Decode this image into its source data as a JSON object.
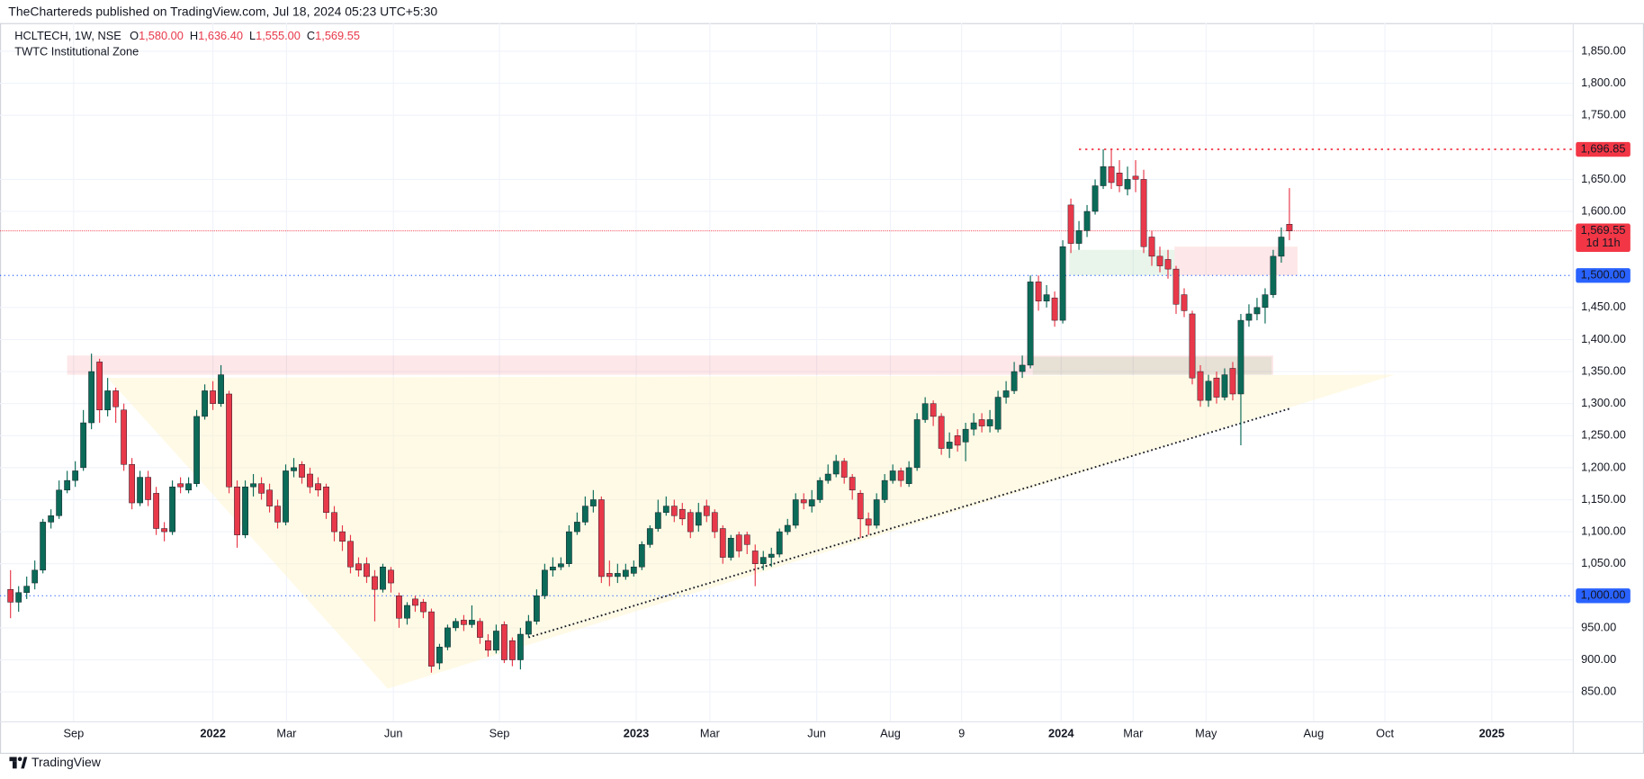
{
  "chart_data": {
    "type": "candlestick",
    "publisher": "TheChartereds published on TradingView.com, Jul 18, 2024 05:23 UTC+5:30",
    "symbol": "HCLTECH, 1W, NSE",
    "ohlc_legend": [
      {
        "key": "O",
        "value": "1,580.00"
      },
      {
        "key": "H",
        "value": "1,636.40"
      },
      {
        "key": "L",
        "value": "1,555.00"
      },
      {
        "key": "C",
        "value": "1,569.55"
      }
    ],
    "indicator": "TWTC Institutional Zone",
    "brand": "TradingView",
    "up_color": "#0b6b58",
    "down_color": "#e8394a",
    "xlim": [
      -1.3,
      193
    ],
    "ylim": [
      804,
      1894
    ],
    "xticks": [
      {
        "value": 7.8,
        "label": "Sep"
      },
      {
        "value": 25.0,
        "label": "2022"
      },
      {
        "value": 34.1,
        "label": "Mar"
      },
      {
        "value": 47.3,
        "label": "Jun"
      },
      {
        "value": 60.4,
        "label": "Sep"
      },
      {
        "value": 77.3,
        "label": "2023"
      },
      {
        "value": 86.4,
        "label": "Mar"
      },
      {
        "value": 99.6,
        "label": "Jun"
      },
      {
        "value": 108.7,
        "label": "Aug"
      },
      {
        "value": 117.5,
        "label": "9"
      },
      {
        "value": 129.8,
        "label": "2024"
      },
      {
        "value": 138.7,
        "label": "Mar"
      },
      {
        "value": 147.7,
        "label": "May"
      },
      {
        "value": 161.0,
        "label": "Aug"
      },
      {
        "value": 169.8,
        "label": "Oct"
      },
      {
        "value": 183.0,
        "label": "2025"
      }
    ],
    "yticks": [
      {
        "value": 1850,
        "label": "1,850.00"
      },
      {
        "value": 1800,
        "label": "1,800.00"
      },
      {
        "value": 1750,
        "label": "1,750.00"
      },
      {
        "value": 1650,
        "label": "1,650.00"
      },
      {
        "value": 1600,
        "label": "1,600.00"
      },
      {
        "value": 1450,
        "label": "1,450.00"
      },
      {
        "value": 1400,
        "label": "1,400.00"
      },
      {
        "value": 1350,
        "label": "1,350.00"
      },
      {
        "value": 1300,
        "label": "1,300.00"
      },
      {
        "value": 1250,
        "label": "1,250.00"
      },
      {
        "value": 1200,
        "label": "1,200.00"
      },
      {
        "value": 1150,
        "label": "1,150.00"
      },
      {
        "value": 1100,
        "label": "1,100.00"
      },
      {
        "value": 1050,
        "label": "1,050.00"
      },
      {
        "value": 950,
        "label": "950.00"
      },
      {
        "value": 900,
        "label": "900.00"
      },
      {
        "value": 850,
        "label": "850.00"
      }
    ],
    "grid": true,
    "levels": [
      {
        "value": 1696.85,
        "label": "1,696.85",
        "color": "#f23645",
        "dash": "2 4",
        "from": 132
      },
      {
        "value": 1500,
        "label": "1,500.00",
        "color": "#2962ff",
        "dash": "1 3"
      },
      {
        "value": 1000,
        "label": "1,000.00",
        "color": "#2962ff",
        "dash": "1 3"
      }
    ],
    "last_price": {
      "value": 1569.55,
      "label": "1,569.55",
      "countdown": "1d 11h",
      "color": "#f23645"
    },
    "trendline": {
      "x": [
        64,
        158
      ],
      "y": [
        935,
        1292
      ],
      "color": "#131722"
    },
    "triangle": {
      "x": [
        12,
        46.6,
        171
      ],
      "y": [
        1340,
        855,
        1345
      ],
      "color": "rgba(255,245,200,0.45)"
    },
    "zones": [
      {
        "x": [
          7,
          156
        ],
        "y": [
          1345,
          1375
        ],
        "color": "rgba(242,54,69,0.12)"
      },
      {
        "x": [
          126.3,
          155.8
        ],
        "y": [
          1345,
          1373
        ],
        "color": "rgba(76,175,80,0.12)"
      },
      {
        "x": [
          130.8,
          143.8
        ],
        "y": [
          1500,
          1540
        ],
        "color": "rgba(76,175,80,0.12)"
      },
      {
        "x": [
          143.8,
          159
        ],
        "y": [
          1500,
          1545
        ],
        "color": "rgba(242,54,69,0.12)"
      }
    ],
    "open": [
      1010,
      990,
      1005,
      1020,
      1040,
      1115,
      1125,
      1165,
      1180,
      1200,
      1270,
      1365,
      1290,
      1320,
      1290,
      1205,
      1145,
      1185,
      1160,
      1105,
      1100,
      1175,
      1165,
      1175,
      1280,
      1320,
      1300,
      1315,
      1170,
      1095,
      1170,
      1175,
      1165,
      1140,
      1115,
      1195,
      1205,
      1190,
      1175,
      1170,
      1130,
      1100,
      1085,
      1050,
      1050,
      1030,
      1010,
      1040,
      1000,
      965,
      995,
      990,
      975,
      895,
      920,
      950,
      962,
      955,
      960,
      930,
      915,
      955,
      930,
      900,
      940,
      960,
      1000,
      1040,
      1045,
      1050,
      1100,
      1115,
      1140,
      1150,
      1035,
      1030,
      1030,
      1035,
      1045,
      1080,
      1105,
      1130,
      1140,
      1135,
      1130,
      1110,
      1140,
      1130,
      1105,
      1060,
      1095,
      1095,
      1070,
      1050,
      1060,
      1065,
      1100,
      1110,
      1150,
      1140,
      1150,
      1180,
      1190,
      1210,
      1185,
      1160,
      1120,
      1110,
      1150,
      1180,
      1195,
      1175,
      1200,
      1275,
      1300,
      1280,
      1230,
      1250,
      1240,
      1260,
      1275,
      1265,
      1260,
      1310,
      1320,
      1350,
      1360,
      1490,
      1460,
      1465,
      1430,
      1610,
      1550,
      1570,
      1600,
      1640,
      1670,
      1660,
      1635,
      1655,
      1650,
      1560,
      1530,
      1525,
      1510,
      1470,
      1440,
      1350,
      1305,
      1340,
      1310,
      1355,
      1315,
      1430,
      1440,
      1450,
      1470,
      1530,
      1580
    ],
    "high": [
      1040,
      1015,
      1030,
      1055,
      1120,
      1135,
      1180,
      1195,
      1210,
      1290,
      1378,
      1370,
      1340,
      1325,
      1300,
      1215,
      1195,
      1195,
      1170,
      1115,
      1180,
      1185,
      1185,
      1290,
      1330,
      1335,
      1360,
      1320,
      1180,
      1180,
      1190,
      1185,
      1175,
      1150,
      1205,
      1215,
      1210,
      1200,
      1185,
      1175,
      1140,
      1110,
      1095,
      1060,
      1060,
      1040,
      1050,
      1045,
      1005,
      990,
      1000,
      995,
      980,
      925,
      955,
      965,
      970,
      985,
      965,
      940,
      955,
      960,
      935,
      950,
      970,
      1010,
      1050,
      1060,
      1060,
      1110,
      1130,
      1155,
      1165,
      1155,
      1055,
      1050,
      1050,
      1055,
      1085,
      1110,
      1150,
      1155,
      1150,
      1145,
      1135,
      1145,
      1150,
      1135,
      1110,
      1095,
      1100,
      1100,
      1080,
      1070,
      1075,
      1105,
      1120,
      1160,
      1160,
      1165,
      1185,
      1205,
      1220,
      1215,
      1190,
      1165,
      1130,
      1160,
      1190,
      1205,
      1200,
      1210,
      1285,
      1310,
      1305,
      1285,
      1255,
      1260,
      1270,
      1285,
      1285,
      1290,
      1320,
      1335,
      1365,
      1375,
      1500,
      1500,
      1485,
      1475,
      1555,
      1620,
      1585,
      1610,
      1650,
      1697,
      1697,
      1680,
      1670,
      1680,
      1665,
      1570,
      1545,
      1540,
      1515,
      1480,
      1445,
      1360,
      1345,
      1350,
      1355,
      1365,
      1440,
      1455,
      1465,
      1480,
      1540,
      1575,
      1636.4
    ],
    "low": [
      965,
      975,
      995,
      1010,
      1035,
      1105,
      1120,
      1160,
      1170,
      1195,
      1260,
      1270,
      1280,
      1270,
      1195,
      1135,
      1140,
      1140,
      1095,
      1085,
      1095,
      1160,
      1160,
      1170,
      1275,
      1290,
      1295,
      1160,
      1075,
      1090,
      1155,
      1150,
      1130,
      1105,
      1110,
      1185,
      1175,
      1160,
      1155,
      1120,
      1085,
      1070,
      1035,
      1030,
      1020,
      960,
      1005,
      1005,
      950,
      955,
      975,
      965,
      880,
      885,
      915,
      945,
      945,
      950,
      925,
      905,
      910,
      895,
      890,
      885,
      935,
      955,
      995,
      1030,
      1040,
      1045,
      1095,
      1110,
      1130,
      1020,
      1015,
      1020,
      1025,
      1030,
      1040,
      1075,
      1100,
      1125,
      1115,
      1110,
      1090,
      1100,
      1115,
      1090,
      1050,
      1055,
      1060,
      1065,
      1015,
      1040,
      1045,
      1060,
      1095,
      1105,
      1135,
      1130,
      1145,
      1175,
      1185,
      1175,
      1150,
      1090,
      1095,
      1105,
      1145,
      1175,
      1170,
      1170,
      1195,
      1270,
      1265,
      1220,
      1215,
      1225,
      1210,
      1250,
      1255,
      1255,
      1255,
      1300,
      1315,
      1340,
      1355,
      1445,
      1450,
      1420,
      1425,
      1535,
      1540,
      1560,
      1595,
      1635,
      1635,
      1630,
      1625,
      1630,
      1535,
      1515,
      1505,
      1495,
      1440,
      1435,
      1330,
      1295,
      1295,
      1300,
      1305,
      1305,
      1235,
      1420,
      1430,
      1425,
      1465,
      1520,
      1555
    ],
    "close": [
      990,
      1005,
      1015,
      1040,
      1115,
      1125,
      1165,
      1180,
      1195,
      1270,
      1350,
      1290,
      1320,
      1295,
      1205,
      1145,
      1185,
      1150,
      1105,
      1100,
      1170,
      1170,
      1175,
      1280,
      1320,
      1300,
      1345,
      1170,
      1095,
      1170,
      1175,
      1160,
      1140,
      1115,
      1195,
      1200,
      1185,
      1170,
      1165,
      1130,
      1100,
      1085,
      1045,
      1040,
      1030,
      1010,
      1045,
      1020,
      965,
      985,
      985,
      975,
      890,
      920,
      950,
      960,
      955,
      962,
      935,
      915,
      945,
      900,
      900,
      940,
      960,
      1000,
      1040,
      1045,
      1050,
      1100,
      1115,
      1140,
      1150,
      1030,
      1030,
      1035,
      1040,
      1045,
      1080,
      1105,
      1130,
      1140,
      1125,
      1120,
      1100,
      1130,
      1125,
      1100,
      1060,
      1090,
      1070,
      1080,
      1050,
      1060,
      1065,
      1100,
      1110,
      1150,
      1145,
      1150,
      1180,
      1190,
      1210,
      1185,
      1165,
      1120,
      1110,
      1150,
      1180,
      1195,
      1180,
      1200,
      1275,
      1300,
      1280,
      1230,
      1240,
      1235,
      1260,
      1270,
      1265,
      1275,
      1310,
      1320,
      1350,
      1360,
      1490,
      1460,
      1470,
      1430,
      1545,
      1550,
      1570,
      1600,
      1640,
      1670,
      1645,
      1640,
      1650,
      1650,
      1545,
      1530,
      1515,
      1510,
      1455,
      1445,
      1340,
      1305,
      1335,
      1310,
      1345,
      1315,
      1430,
      1440,
      1450,
      1470,
      1530,
      1560,
      1569.55
    ]
  }
}
